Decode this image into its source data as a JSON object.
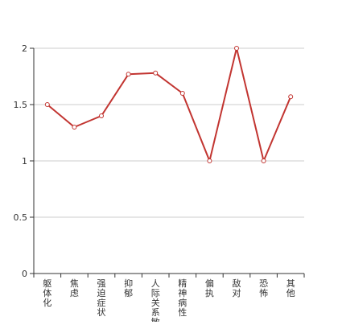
{
  "chart_data": {
    "type": "line",
    "title": "",
    "xlabel": "",
    "ylabel": "",
    "categories": [
      "躯体化",
      "焦虑",
      "强迫症状",
      "抑郁",
      "人际关系敏感",
      "精神病性",
      "偏执",
      "敌对",
      "恐怖",
      "其他"
    ],
    "series": [
      {
        "values": [
          1.5,
          1.3,
          1.4,
          1.77,
          1.78,
          1.6,
          1.0,
          2.0,
          1.0,
          1.57
        ]
      }
    ],
    "ylim": [
      0,
      2
    ],
    "yticks": [
      "0",
      "0.5",
      "1",
      "1.5",
      "2"
    ],
    "yticks_values": [
      0,
      0.5,
      1,
      1.5,
      2
    ],
    "grid": true,
    "colors": {
      "line": "#c23531",
      "grid": "#cccccc",
      "axis": "#333333"
    }
  }
}
